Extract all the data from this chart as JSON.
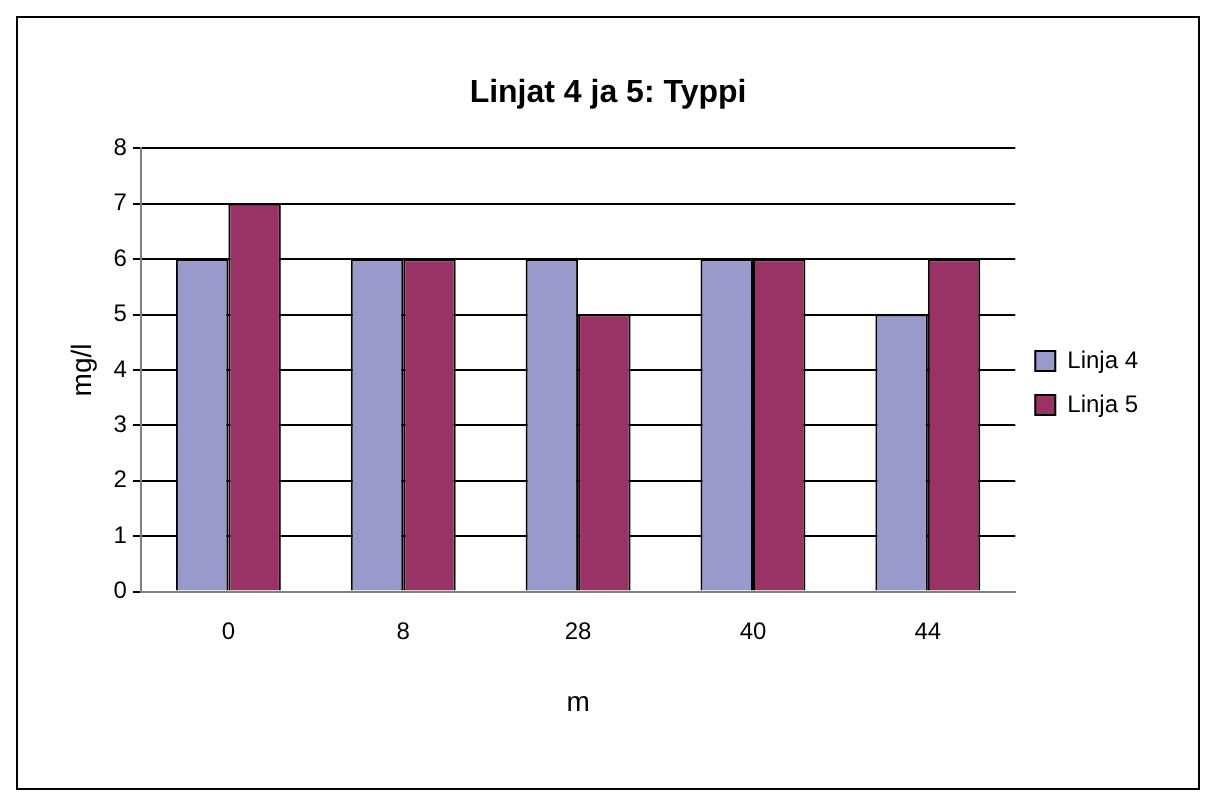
{
  "chart_data": {
    "type": "bar",
    "title": "Linjat 4 ja 5: Typpi",
    "xlabel": "m",
    "ylabel": "mg/l",
    "categories": [
      "0",
      "8",
      "28",
      "40",
      "44"
    ],
    "series": [
      {
        "name": "Linja 4",
        "color": "#9999cc",
        "values": [
          6,
          6,
          6,
          6,
          5
        ]
      },
      {
        "name": "Linja 5",
        "color": "#993366",
        "values": [
          7,
          6,
          5,
          6,
          6
        ]
      }
    ],
    "ylim": [
      0,
      8
    ],
    "yticks": [
      0,
      1,
      2,
      3,
      4,
      5,
      6,
      7,
      8
    ],
    "grid": "y",
    "legend": "right"
  }
}
